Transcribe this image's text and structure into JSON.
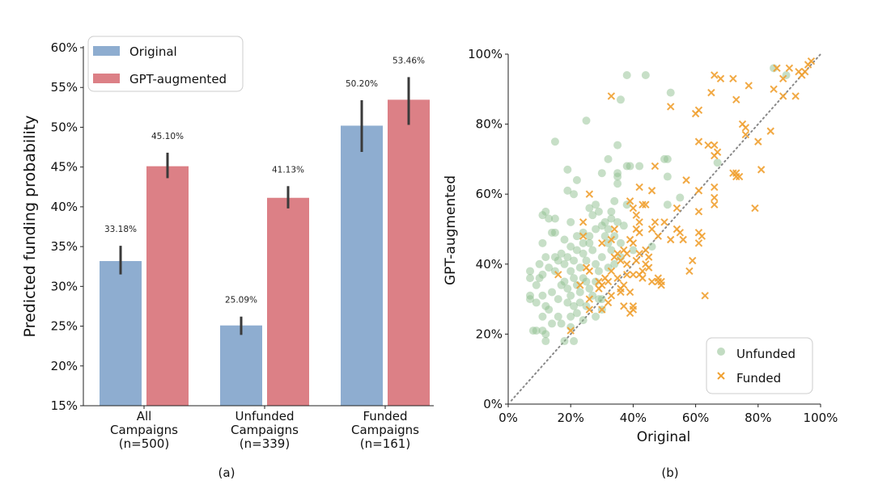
{
  "chart_data": [
    {
      "type": "bar",
      "caption": "(a)",
      "ylabel": "Predicted funding probability",
      "ylim": [
        15,
        60
      ],
      "yticks": [
        "15%",
        "20%",
        "25%",
        "30%",
        "35%",
        "40%",
        "45%",
        "50%",
        "55%",
        "60%"
      ],
      "categories": [
        [
          "All",
          "Campaigns",
          "(n=500)"
        ],
        [
          "Unfunded",
          "Campaigns",
          "(n=339)"
        ],
        [
          "Funded",
          "Campaigns",
          "(n=161)"
        ]
      ],
      "legend": {
        "placement": "top-left"
      },
      "series": [
        {
          "name": "Original",
          "color": "#8eadd0",
          "values": [
            33.18,
            25.09,
            50.2
          ],
          "labels": [
            "33.18%",
            "25.09%",
            "50.20%"
          ],
          "err": [
            [
              31.5,
              35.1
            ],
            [
              23.9,
              26.2
            ],
            [
              46.9,
              53.4
            ]
          ]
        },
        {
          "name": "GPT-augmented",
          "color": "#dc8086",
          "values": [
            45.1,
            41.13,
            53.46
          ],
          "labels": [
            "45.10%",
            "41.13%",
            "53.46%"
          ],
          "err": [
            [
              43.6,
              46.8
            ],
            [
              39.8,
              42.6
            ],
            [
              50.3,
              56.3
            ]
          ]
        }
      ]
    },
    {
      "type": "scatter",
      "caption": "(b)",
      "xlabel": "Original",
      "ylabel": "GPT-augmented",
      "xlim": [
        0,
        100
      ],
      "ylim": [
        0,
        100
      ],
      "xticks": [
        "0%",
        "20%",
        "40%",
        "60%",
        "80%",
        "100%"
      ],
      "yticks": [
        "0%",
        "20%",
        "40%",
        "60%",
        "80%",
        "100%"
      ],
      "diagonal": "y=x dotted",
      "legend": {
        "placement": "bottom-right"
      },
      "series": [
        {
          "name": "Unfunded",
          "marker": "circle",
          "color": "#8fbf8f",
          "points": [
            [
              38,
              94
            ],
            [
              44,
              94
            ],
            [
              52,
              89
            ],
            [
              36,
              87
            ],
            [
              25,
              81
            ],
            [
              15,
              75
            ],
            [
              35,
              74
            ],
            [
              32,
              70
            ],
            [
              51,
              70
            ],
            [
              50,
              70
            ],
            [
              38,
              68
            ],
            [
              39,
              68
            ],
            [
              42,
              68
            ],
            [
              19,
              67
            ],
            [
              30,
              66
            ],
            [
              35,
              66
            ],
            [
              35,
              65
            ],
            [
              35,
              63
            ],
            [
              22,
              64
            ],
            [
              51,
              65
            ],
            [
              19,
              61
            ],
            [
              21,
              60
            ],
            [
              55,
              59
            ],
            [
              51,
              57
            ],
            [
              85,
              96
            ],
            [
              89,
              94
            ],
            [
              67,
              69
            ],
            [
              11,
              54
            ],
            [
              12,
              55
            ],
            [
              13,
              53
            ],
            [
              15,
              53
            ],
            [
              20,
              52
            ],
            [
              26,
              56
            ],
            [
              28,
              57
            ],
            [
              33,
              55
            ],
            [
              34,
              58
            ],
            [
              38,
              57
            ],
            [
              14,
              49
            ],
            [
              15,
              49
            ],
            [
              11,
              46
            ],
            [
              18,
              47
            ],
            [
              7,
              38
            ],
            [
              7,
              36
            ],
            [
              10,
              36
            ],
            [
              11,
              37
            ],
            [
              7,
              31
            ],
            [
              7,
              30
            ],
            [
              9,
              29
            ],
            [
              11,
              31
            ],
            [
              12,
              28
            ],
            [
              8,
              21
            ],
            [
              9,
              21
            ],
            [
              11,
              21
            ],
            [
              12,
              18
            ],
            [
              12,
              20
            ],
            [
              18,
              18
            ],
            [
              21,
              18
            ],
            [
              14,
              23
            ],
            [
              16,
              25
            ],
            [
              11,
              25
            ],
            [
              13,
              27
            ],
            [
              20,
              25
            ],
            [
              22,
              26
            ],
            [
              17,
              23
            ],
            [
              20,
              22
            ],
            [
              24,
              24
            ],
            [
              28,
              25
            ],
            [
              30,
              27
            ],
            [
              30,
              30
            ],
            [
              18,
              40
            ],
            [
              19,
              42
            ],
            [
              20,
              38
            ],
            [
              21,
              41
            ],
            [
              22,
              44
            ],
            [
              23,
              39
            ],
            [
              24,
              43
            ],
            [
              25,
              41
            ],
            [
              26,
              46
            ],
            [
              27,
              44
            ],
            [
              28,
              40
            ],
            [
              29,
              38
            ],
            [
              30,
              42
            ],
            [
              31,
              48
            ],
            [
              32,
              46
            ],
            [
              33,
              44
            ],
            [
              18,
              35
            ],
            [
              19,
              33
            ],
            [
              20,
              31
            ],
            [
              21,
              36
            ],
            [
              22,
              34
            ],
            [
              23,
              32
            ],
            [
              24,
              36
            ],
            [
              25,
              35
            ],
            [
              26,
              33
            ],
            [
              27,
              31
            ],
            [
              28,
              35
            ],
            [
              29,
              30
            ],
            [
              15,
              38
            ],
            [
              16,
              41
            ],
            [
              17,
              34
            ],
            [
              14,
              32
            ],
            [
              13,
              39
            ],
            [
              16,
              30
            ],
            [
              19,
              29
            ],
            [
              21,
              28
            ],
            [
              23,
              29
            ],
            [
              25,
              28
            ],
            [
              22,
              48
            ],
            [
              24,
              49
            ],
            [
              26,
              48
            ],
            [
              28,
              50
            ],
            [
              30,
              51
            ],
            [
              32,
              50
            ],
            [
              34,
              48
            ],
            [
              36,
              46
            ],
            [
              24,
              46
            ],
            [
              20,
              45
            ],
            [
              17,
              43
            ],
            [
              15,
              42
            ],
            [
              31,
              52
            ],
            [
              33,
              53
            ],
            [
              35,
              52
            ],
            [
              37,
              51
            ],
            [
              27,
              54
            ],
            [
              29,
              55
            ],
            [
              40,
              44
            ],
            [
              46,
              45
            ],
            [
              32,
              39
            ],
            [
              34,
              40
            ],
            [
              36,
              42
            ],
            [
              12,
              42
            ],
            [
              10,
              40
            ],
            [
              9,
              34
            ]
          ]
        },
        {
          "name": "Funded",
          "marker": "x",
          "color": "#f0a030",
          "points": [
            [
              33,
              88
            ],
            [
              52,
              85
            ],
            [
              60,
              83
            ],
            [
              61,
              84
            ],
            [
              65,
              89
            ],
            [
              66,
              94
            ],
            [
              68,
              93
            ],
            [
              72,
              93
            ],
            [
              73,
              87
            ],
            [
              77,
              91
            ],
            [
              85,
              90
            ],
            [
              86,
              96
            ],
            [
              88,
              93
            ],
            [
              88,
              88
            ],
            [
              90,
              96
            ],
            [
              92,
              88
            ],
            [
              93,
              95
            ],
            [
              95,
              95
            ],
            [
              96,
              97
            ],
            [
              97,
              98
            ],
            [
              94,
              94
            ],
            [
              75,
              80
            ],
            [
              76,
              79
            ],
            [
              76,
              77
            ],
            [
              84,
              78
            ],
            [
              80,
              75
            ],
            [
              61,
              75
            ],
            [
              64,
              74
            ],
            [
              66,
              74
            ],
            [
              66,
              71
            ],
            [
              67,
              72
            ],
            [
              47,
              68
            ],
            [
              57,
              64
            ],
            [
              72,
              66
            ],
            [
              73,
              65
            ],
            [
              73,
              66
            ],
            [
              74,
              65
            ],
            [
              81,
              67
            ],
            [
              42,
              62
            ],
            [
              46,
              61
            ],
            [
              61,
              61
            ],
            [
              66,
              62
            ],
            [
              66,
              59
            ],
            [
              66,
              57
            ],
            [
              61,
              55
            ],
            [
              79,
              56
            ],
            [
              26,
              60
            ],
            [
              39,
              58
            ],
            [
              40,
              56
            ],
            [
              43,
              57
            ],
            [
              44,
              57
            ],
            [
              54,
              56
            ],
            [
              24,
              52
            ],
            [
              41,
              54
            ],
            [
              42,
              52
            ],
            [
              41,
              50
            ],
            [
              47,
              52
            ],
            [
              50,
              52
            ],
            [
              46,
              50
            ],
            [
              42,
              49
            ],
            [
              48,
              48
            ],
            [
              52,
              47
            ],
            [
              54,
              50
            ],
            [
              55,
              49
            ],
            [
              56,
              47
            ],
            [
              61,
              49
            ],
            [
              62,
              48
            ],
            [
              61,
              46
            ],
            [
              59,
              41
            ],
            [
              58,
              38
            ],
            [
              63,
              31
            ],
            [
              24,
              48
            ],
            [
              34,
              50
            ],
            [
              33,
              47
            ],
            [
              30,
              46
            ],
            [
              35,
              43
            ],
            [
              37,
              44
            ],
            [
              38,
              43
            ],
            [
              39,
              47
            ],
            [
              40,
              46
            ],
            [
              36,
              41
            ],
            [
              38,
              40
            ],
            [
              42,
              43
            ],
            [
              44,
              44
            ],
            [
              45,
              42
            ],
            [
              44,
              40
            ],
            [
              45,
              39
            ],
            [
              40,
              37
            ],
            [
              42,
              37
            ],
            [
              43,
              38
            ],
            [
              46,
              35
            ],
            [
              48,
              35
            ],
            [
              49,
              34
            ],
            [
              48,
              36
            ],
            [
              49,
              35
            ],
            [
              36,
              33
            ],
            [
              37,
              34
            ],
            [
              36,
              32
            ],
            [
              39,
              32
            ],
            [
              37,
              28
            ],
            [
              39,
              26
            ],
            [
              40,
              28
            ],
            [
              40,
              27
            ],
            [
              30,
              34
            ],
            [
              31,
              36
            ],
            [
              32,
              35
            ],
            [
              33,
              31
            ],
            [
              32,
              29
            ],
            [
              30,
              27
            ],
            [
              29,
              33
            ],
            [
              26,
              30
            ],
            [
              26,
              27
            ],
            [
              23,
              34
            ],
            [
              25,
              39
            ],
            [
              26,
              38
            ],
            [
              16,
              37
            ],
            [
              20,
              21
            ],
            [
              29,
              35
            ],
            [
              33,
              38
            ],
            [
              34,
              42
            ],
            [
              35,
              36
            ],
            [
              38,
              37
            ],
            [
              41,
              41
            ],
            [
              43,
              36
            ]
          ]
        }
      ]
    }
  ]
}
